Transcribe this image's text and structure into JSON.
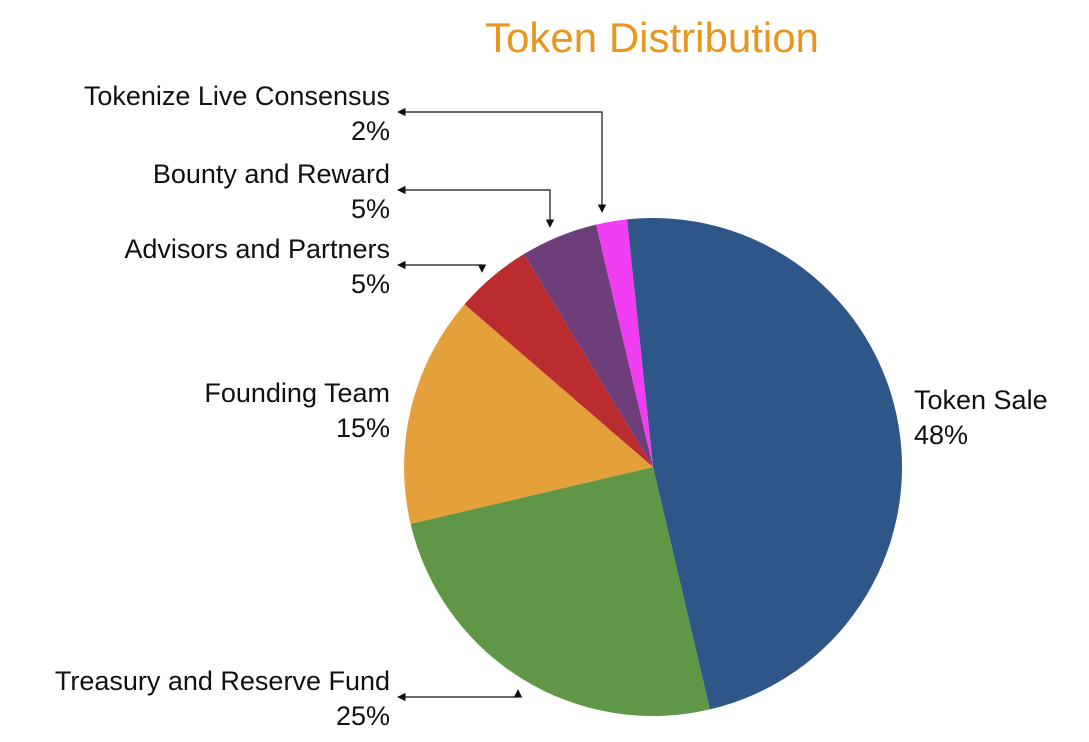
{
  "chart_data": {
    "type": "pie",
    "title": "Token Distribution",
    "title_color": "#E8961E",
    "start_angle_deg": -6,
    "direction": "clockwise",
    "slices": [
      {
        "label": "Token Sale",
        "value": 48,
        "value_text": "48%",
        "color": "#2E5689"
      },
      {
        "label": "Treasury and Reserve Fund",
        "value": 25,
        "value_text": "25%",
        "color": "#5F9746"
      },
      {
        "label": "Founding Team",
        "value": 15,
        "value_text": "15%",
        "color": "#E4A13B"
      },
      {
        "label": "Advisors and Partners",
        "value": 5,
        "value_text": "5%",
        "color": "#BA2C30"
      },
      {
        "label": "Bounty and Reward",
        "value": 5,
        "value_text": "5%",
        "color": "#6D3E7A"
      },
      {
        "label": "Tokenize Live Consensus",
        "value": 2,
        "value_text": "2%",
        "color": "#F23EF2"
      }
    ]
  }
}
